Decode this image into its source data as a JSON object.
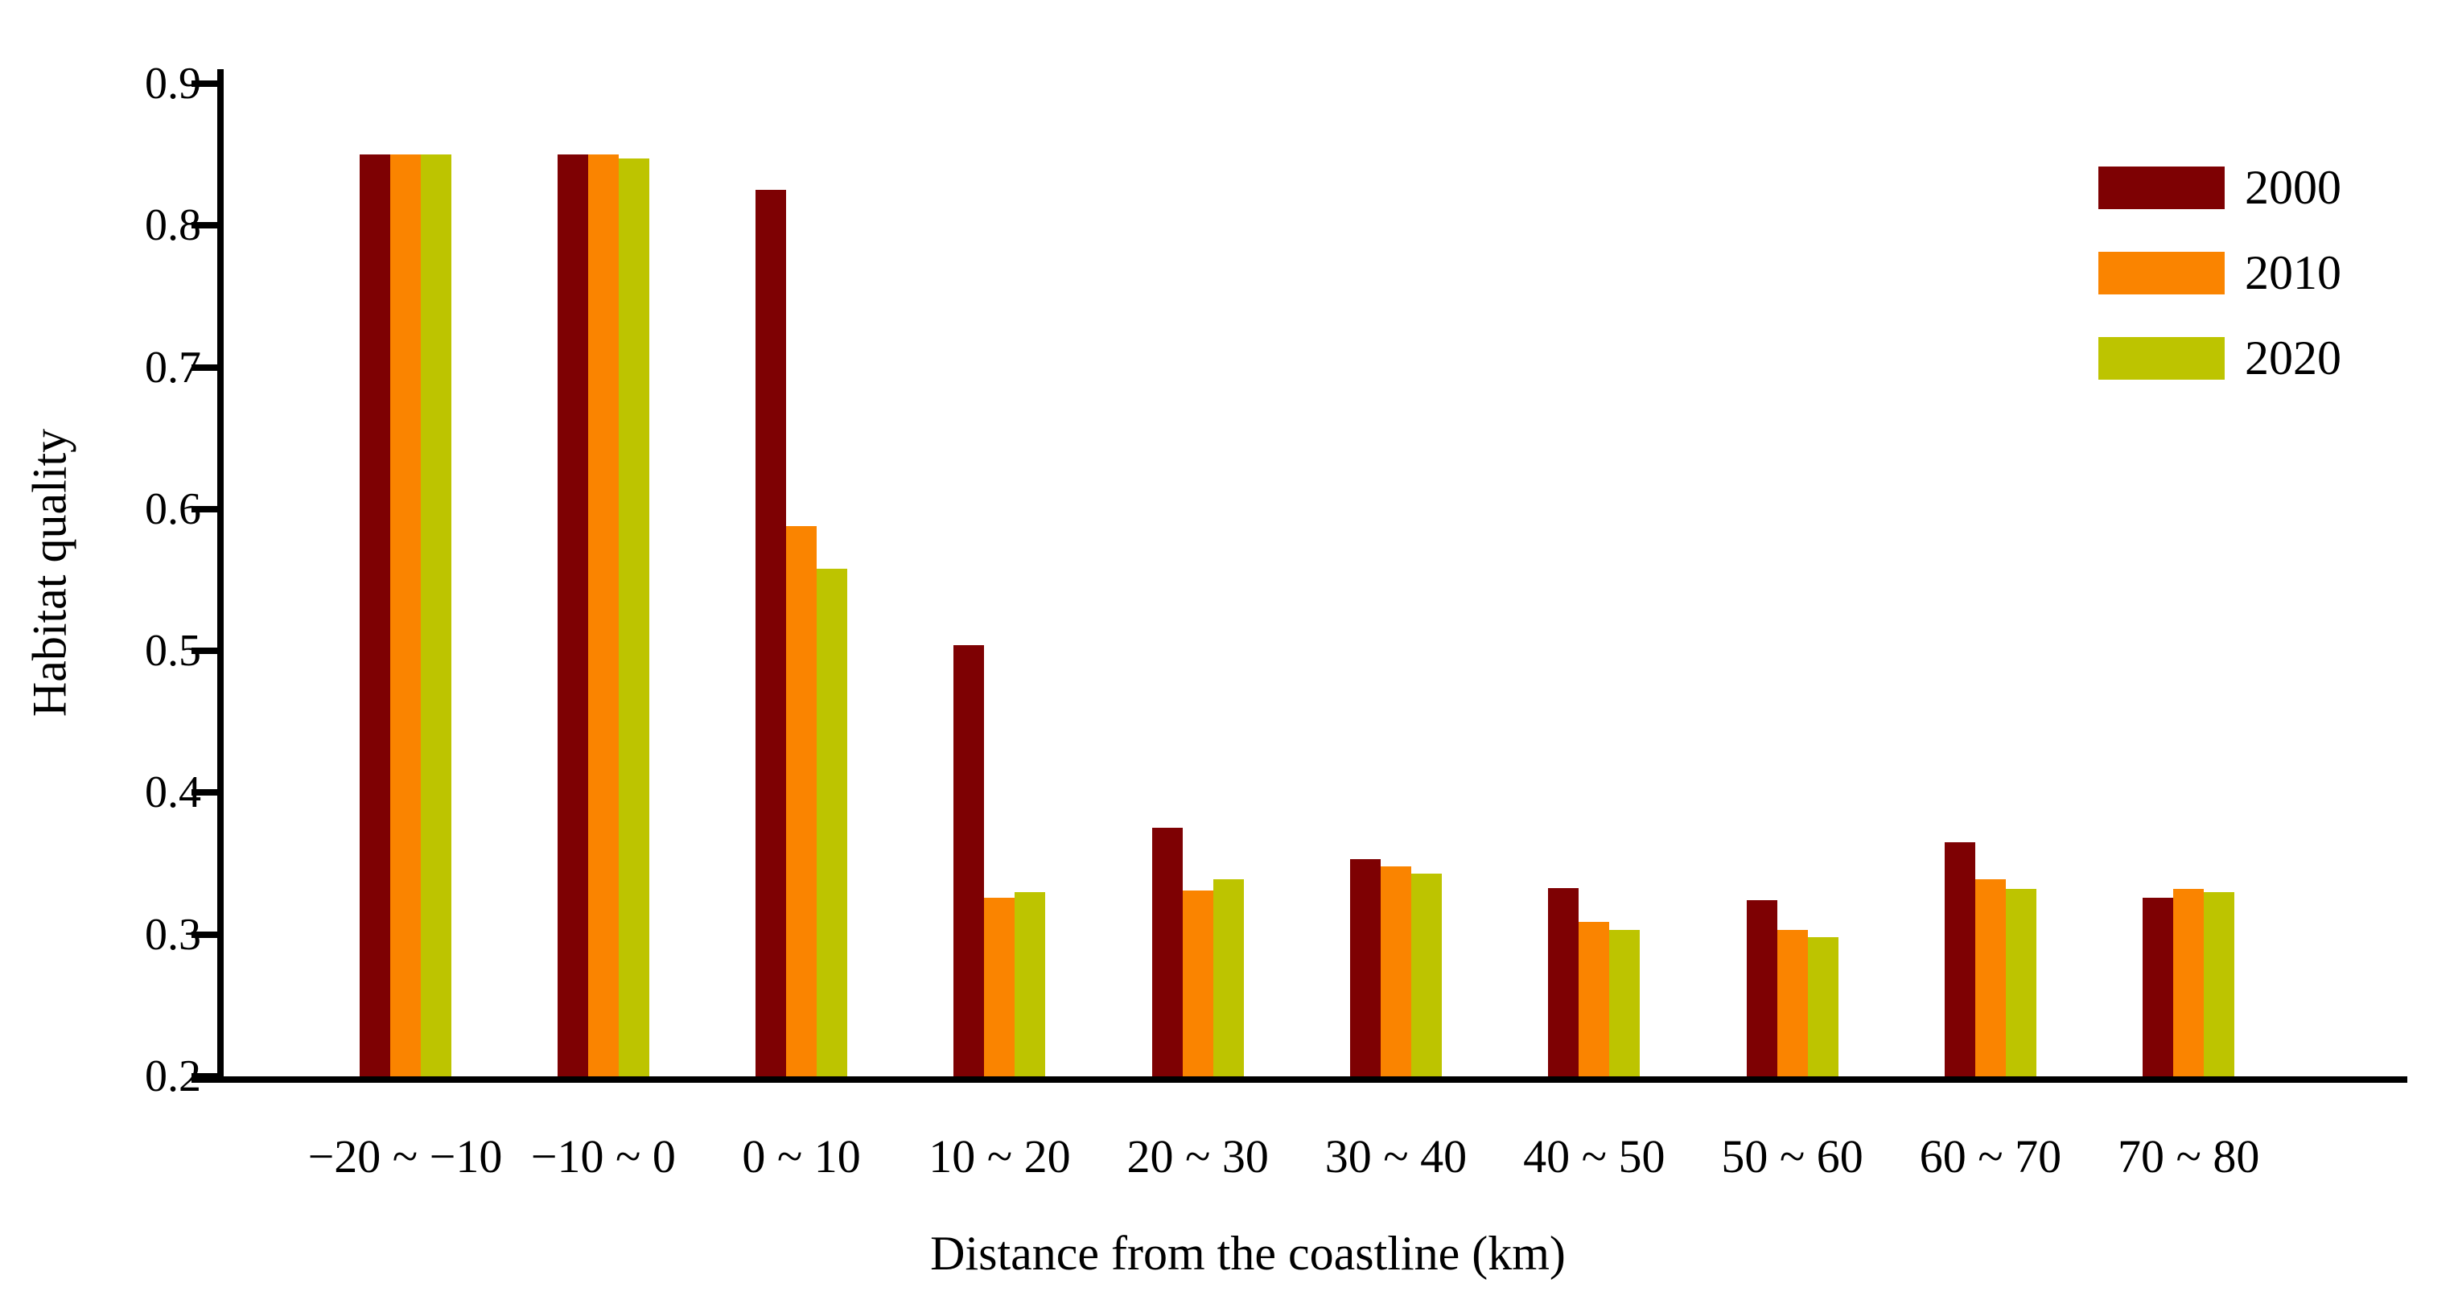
{
  "chart_data": {
    "type": "bar",
    "title": "",
    "xlabel": "Distance from the coastline (km)",
    "ylabel": "Habitat quality",
    "ylim": [
      0.2,
      0.9
    ],
    "yticks": [
      "0.2",
      "0.3",
      "0.4",
      "0.5",
      "0.6",
      "0.7",
      "0.8",
      "0.9"
    ],
    "ytick_values": [
      0.2,
      0.3,
      0.4,
      0.5,
      0.6,
      0.7,
      0.8,
      0.9
    ],
    "grid": "off",
    "legend_position": "upper right",
    "categories": [
      "−20 ~ −10",
      "−10 ~ 0",
      "0 ~ 10",
      "10 ~ 20",
      "20 ~ 30",
      "30 ~ 40",
      "40 ~ 50",
      "50 ~ 60",
      "60 ~ 70",
      "70 ~ 80"
    ],
    "series": [
      {
        "name": "2000",
        "color": "#7E0103",
        "values": [
          0.85,
          0.85,
          0.825,
          0.504,
          0.375,
          0.353,
          0.333,
          0.324,
          0.365,
          0.326
        ]
      },
      {
        "name": "2010",
        "color": "#FA8400",
        "values": [
          0.85,
          0.85,
          0.588,
          0.326,
          0.331,
          0.348,
          0.309,
          0.303,
          0.339,
          0.332
        ]
      },
      {
        "name": "2020",
        "color": "#BDC400",
        "values": [
          0.85,
          0.847,
          0.558,
          0.33,
          0.339,
          0.343,
          0.303,
          0.298,
          0.332,
          0.33
        ]
      }
    ]
  }
}
